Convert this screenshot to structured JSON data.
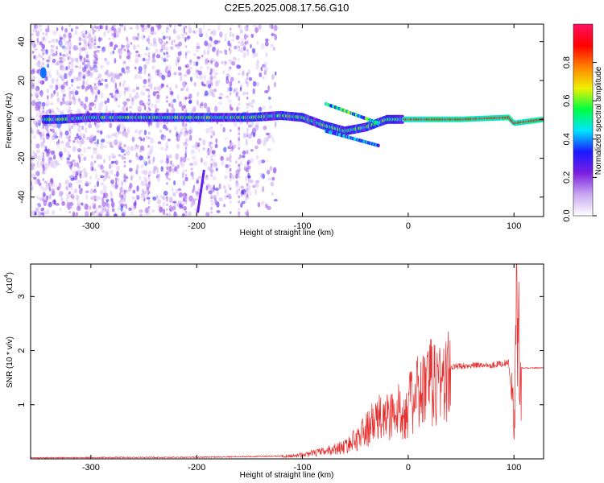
{
  "figure": {
    "title": "C2E5.2025.008.17.56.G10"
  },
  "chart_data": [
    {
      "type": "heatmap",
      "xlabel": "Height of straight line (km)",
      "ylabel": "Frequency (Hz)",
      "xlim": [
        -357,
        128
      ],
      "ylim": [
        -50,
        49
      ],
      "xticks": [
        -300,
        -200,
        -100,
        0,
        100
      ],
      "yticks": [
        -40,
        -20,
        0,
        20,
        40
      ],
      "colorbar": {
        "label": "Normalized spectral amplitude",
        "range": [
          0,
          1
        ],
        "ticks": [
          "0.0",
          "0.2",
          "0.4",
          "0.6",
          "0.8"
        ],
        "tick_values": [
          0,
          0.2,
          0.4,
          0.6,
          0.8
        ],
        "colors": [
          "#ffffff",
          "#c9a7f2",
          "#7b1fe0",
          "#1a1aff",
          "#00e5ff",
          "#00ff40",
          "#f0f000",
          "#ff8000",
          "#ff0000",
          "#ff1060"
        ]
      },
      "ridge": {
        "description_points_x": [
          -357,
          -330,
          -300,
          -250,
          -200,
          -150,
          -120,
          -100,
          -80,
          -60,
          -40,
          -20,
          -5,
          0,
          50,
          95,
          100,
          128
        ],
        "description_points_y": [
          0,
          0,
          1,
          1,
          1,
          1,
          2,
          1,
          -3,
          -6,
          -4,
          0,
          0,
          0,
          0,
          1,
          -2,
          0
        ]
      }
    },
    {
      "type": "line",
      "xlabel": "Height of straight line (km)",
      "ylabel": "SNR (10 * v/v)",
      "scale_label": "(x10",
      "scale_exponent": "4",
      "xlim": [
        -357,
        128
      ],
      "ylim": [
        0,
        3.6
      ],
      "xticks": [
        -300,
        -200,
        -100,
        0,
        100
      ],
      "yticks": [
        1,
        2,
        3
      ],
      "series": [
        {
          "color": "#e83030",
          "envelope_x": [
            -357,
            -200,
            -120,
            -100,
            -80,
            -60,
            -50,
            -40,
            -30,
            -20,
            -10,
            0,
            10,
            20,
            30,
            50,
            80,
            95,
            100,
            103,
            106,
            128
          ],
          "envelope_y": [
            0.02,
            0.03,
            0.05,
            0.08,
            0.15,
            0.25,
            0.4,
            0.6,
            0.8,
            0.9,
            0.95,
            1.1,
            1.35,
            1.55,
            1.65,
            1.72,
            1.74,
            1.78,
            0.6,
            3.5,
            1.68,
            1.68
          ]
        }
      ]
    }
  ]
}
